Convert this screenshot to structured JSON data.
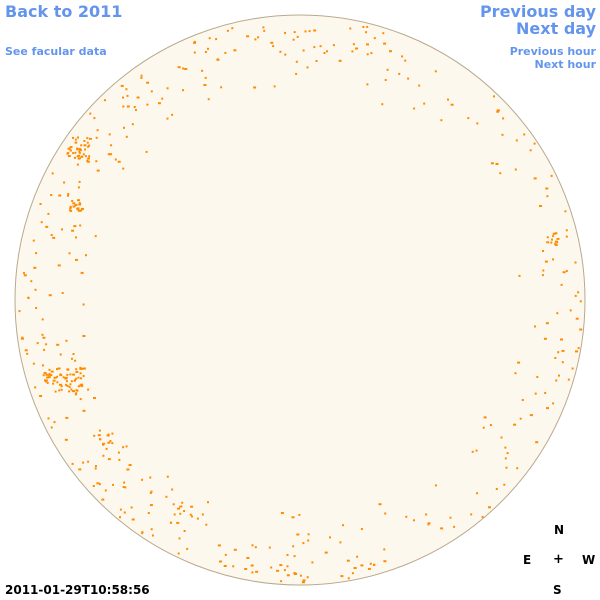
{
  "nav": {
    "back_label": "Back to 2011",
    "facular_label": "See facular data",
    "previous_day_label": "Previous day",
    "next_day_label": "Next day",
    "previous_hour_label": "Previous hour",
    "next_hour_label": "Next hour"
  },
  "compass": {
    "north": "N",
    "east": "E",
    "center": "+",
    "west": "W",
    "south": "S"
  },
  "timestamp": "2011-01-29T10:58:56",
  "colors": {
    "link": "#6495ed",
    "disk_fill": "#fdf8ee",
    "disk_stroke": "#b9a98e",
    "facula": "#ff8c00"
  }
}
